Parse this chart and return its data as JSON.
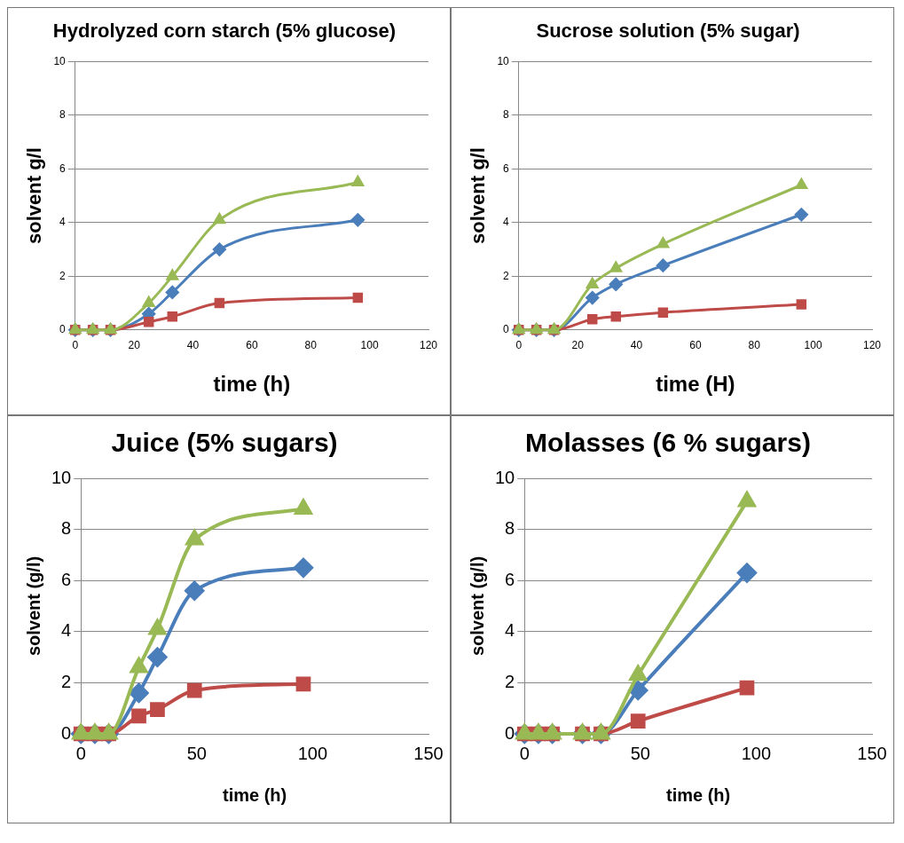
{
  "chart_data": [
    {
      "type": "line",
      "title": "Hydrolyzed corn starch (5% glucose)",
      "xlabel": "time (h)",
      "ylabel": "solvent g/l",
      "x": [
        0,
        6,
        12,
        25,
        33,
        49,
        96
      ],
      "xlim": [
        0,
        120
      ],
      "xticks": [
        0,
        20,
        40,
        60,
        80,
        100,
        120
      ],
      "ylim": [
        0,
        10
      ],
      "yticks": [
        0,
        2,
        4,
        6,
        8,
        10
      ],
      "grid": "y",
      "legend": false,
      "series": [
        {
          "color": "#4a7ebb",
          "marker": "diamond",
          "values": [
            0,
            0,
            0,
            0.6,
            1.4,
            3.0,
            4.1
          ]
        },
        {
          "color": "#be4b48",
          "marker": "square",
          "values": [
            0,
            0,
            0,
            0.3,
            0.5,
            1.0,
            1.2
          ]
        },
        {
          "color": "#98b954",
          "marker": "triangle",
          "values": [
            0,
            0,
            0,
            1.0,
            2.0,
            4.1,
            5.5
          ]
        }
      ]
    },
    {
      "type": "line",
      "title": "Sucrose solution (5% sugar)",
      "xlabel": "time (H)",
      "ylabel": "solvent g/l",
      "x": [
        0,
        6,
        12,
        25,
        33,
        49,
        96
      ],
      "xlim": [
        0,
        120
      ],
      "xticks": [
        0,
        20,
        40,
        60,
        80,
        100,
        120
      ],
      "ylim": [
        0,
        10
      ],
      "yticks": [
        0,
        2,
        4,
        6,
        8,
        10
      ],
      "grid": "y",
      "legend": false,
      "series": [
        {
          "color": "#4a7ebb",
          "marker": "diamond",
          "values": [
            0,
            0,
            0,
            1.2,
            1.7,
            2.4,
            4.3
          ]
        },
        {
          "color": "#be4b48",
          "marker": "square",
          "values": [
            0,
            0,
            0,
            0.4,
            0.5,
            0.65,
            0.95
          ]
        },
        {
          "color": "#98b954",
          "marker": "triangle",
          "values": [
            0,
            0,
            0,
            1.7,
            2.3,
            3.2,
            5.4
          ]
        }
      ]
    },
    {
      "type": "line",
      "title": "Juice (5% sugars)",
      "xlabel": "time (h)",
      "ylabel": "solvent (g/l)",
      "x": [
        0,
        6,
        12,
        25,
        33,
        49,
        96
      ],
      "xlim": [
        0,
        150
      ],
      "xticks": [
        0,
        50,
        100,
        150
      ],
      "ylim": [
        0,
        10
      ],
      "yticks": [
        0,
        2,
        4,
        6,
        8,
        10
      ],
      "grid": "y",
      "legend": false,
      "series": [
        {
          "color": "#4a7ebb",
          "marker": "diamond",
          "values": [
            0,
            0,
            0,
            1.6,
            3.0,
            5.6,
            6.5
          ]
        },
        {
          "color": "#be4b48",
          "marker": "square",
          "values": [
            0,
            0,
            0,
            0.7,
            0.95,
            1.7,
            1.95
          ]
        },
        {
          "color": "#98b954",
          "marker": "triangle",
          "values": [
            0,
            0,
            0,
            2.6,
            4.1,
            7.6,
            8.8
          ]
        }
      ]
    },
    {
      "type": "line",
      "title": "Molasses (6 % sugars)",
      "xlabel": "time (h)",
      "ylabel": "solvent (g/l)",
      "x": [
        0,
        6,
        12,
        25,
        33,
        49,
        96
      ],
      "xlim": [
        0,
        150
      ],
      "xticks": [
        0,
        50,
        100,
        150
      ],
      "ylim": [
        0,
        10
      ],
      "yticks": [
        0,
        2,
        4,
        6,
        8,
        10
      ],
      "grid": "y",
      "legend": false,
      "series": [
        {
          "color": "#4a7ebb",
          "marker": "diamond",
          "values": [
            0,
            0,
            0,
            0,
            0,
            1.7,
            6.3
          ]
        },
        {
          "color": "#be4b48",
          "marker": "square",
          "values": [
            0,
            0,
            0,
            0,
            0,
            0.5,
            1.8
          ]
        },
        {
          "color": "#98b954",
          "marker": "triangle",
          "values": [
            0,
            0,
            0,
            0,
            0,
            2.3,
            9.1
          ]
        }
      ]
    }
  ]
}
